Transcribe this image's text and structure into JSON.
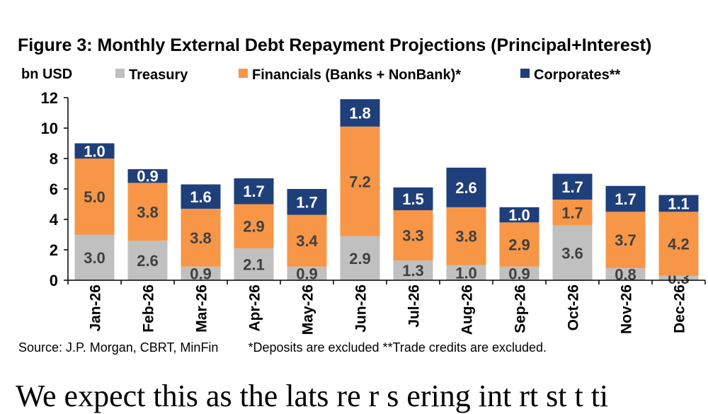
{
  "title": "Figure 3: Monthly External Debt Repayment Projections (Principal+Interest)",
  "footnote": {
    "source": "Source: J.P. Morgan, CBRT, MinFin",
    "notes": "*Deposits are excluded **Trade credits are excluded."
  },
  "body_text": "We expect this as the lats re  r  s  ering int  rt  st  t  ti",
  "colors": {
    "treasury": "#c0c0c0",
    "financials": "#f79646",
    "corporates": "#1f3f7a",
    "axis": "#000000"
  },
  "chart_data": {
    "type": "bar",
    "stacked": true,
    "ylabel": "bn USD",
    "ylim": [
      0,
      12
    ],
    "yticks": [
      0,
      2,
      4,
      6,
      8,
      10,
      12
    ],
    "grid": false,
    "legend_position": "top",
    "categories": [
      "Jan-26",
      "Feb-26",
      "Mar-26",
      "Apr-26",
      "May-26",
      "Jun-26",
      "Jul-26",
      "Aug-26",
      "Sep-26",
      "Oct-26",
      "Nov-26",
      "Dec-26"
    ],
    "series": [
      {
        "name": "Treasury",
        "color_key": "treasury",
        "values": [
          3.0,
          2.6,
          0.9,
          2.1,
          0.9,
          2.9,
          1.3,
          1.0,
          0.9,
          3.6,
          0.8,
          0.3
        ]
      },
      {
        "name": "Financials (Banks + NonBank)*",
        "color_key": "financials",
        "values": [
          5.0,
          3.8,
          3.8,
          2.9,
          3.4,
          7.2,
          3.3,
          3.8,
          2.9,
          1.7,
          3.7,
          4.2
        ]
      },
      {
        "name": "Corporates**",
        "color_key": "corporates",
        "values": [
          1.0,
          0.9,
          1.6,
          1.7,
          1.7,
          1.8,
          1.5,
          2.6,
          1.0,
          1.7,
          1.7,
          1.1
        ]
      }
    ]
  }
}
